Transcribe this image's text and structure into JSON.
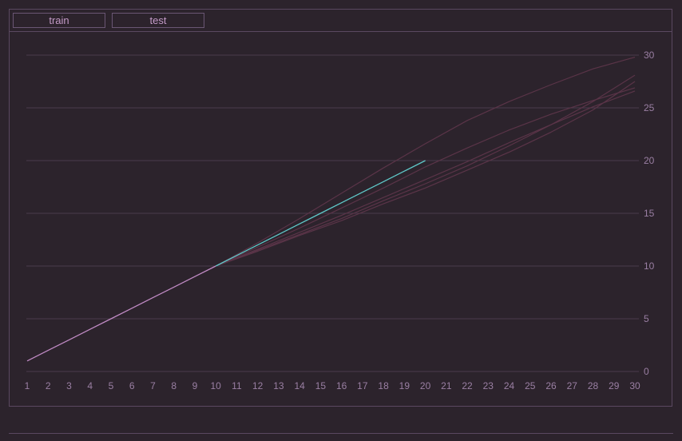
{
  "tabs": [
    {
      "label": "train"
    },
    {
      "label": "test"
    }
  ],
  "colors": {
    "background": "#2c232c",
    "grid": "#4a3b4d",
    "axis_text": "#9a7fa3",
    "main_line": "#c08ac4",
    "highlight_line": "#5fc9c9",
    "faint_lines": "#5a3448"
  },
  "chart_data": {
    "type": "line",
    "title": "",
    "xlabel": "",
    "ylabel": "",
    "xlim": [
      1,
      30
    ],
    "ylim": [
      0,
      30
    ],
    "x_ticks": [
      1,
      2,
      3,
      4,
      5,
      6,
      7,
      8,
      9,
      10,
      11,
      12,
      13,
      14,
      15,
      16,
      17,
      18,
      19,
      20,
      21,
      22,
      23,
      24,
      25,
      26,
      27,
      28,
      29,
      30
    ],
    "y_ticks": [
      0,
      5,
      10,
      15,
      20,
      25,
      30
    ],
    "y_axis_position": "right",
    "grid": "horizontal",
    "series": [
      {
        "role": "base",
        "x": [
          1,
          2,
          3,
          4,
          5,
          6,
          7,
          8,
          9,
          10
        ],
        "y": [
          1,
          2,
          3,
          4,
          5,
          6,
          7,
          8,
          9,
          10
        ]
      },
      {
        "role": "highlight",
        "x": [
          10,
          11,
          12,
          13,
          14,
          15,
          16,
          17,
          18,
          19,
          20
        ],
        "y": [
          10,
          11,
          12,
          13,
          14,
          15,
          16,
          17,
          18,
          19,
          20
        ]
      },
      {
        "role": "faint",
        "x": [
          10,
          12,
          14,
          16,
          18,
          20,
          22,
          24,
          26,
          28,
          30
        ],
        "y": [
          10,
          12.2,
          14.5,
          16.9,
          19.3,
          21.6,
          23.8,
          25.6,
          27.2,
          28.7,
          29.8
        ]
      },
      {
        "role": "faint",
        "x": [
          10,
          12,
          14,
          16,
          18,
          20,
          22,
          24,
          26,
          28,
          30
        ],
        "y": [
          10,
          11.8,
          13.6,
          15.5,
          17.4,
          19.4,
          21.2,
          22.9,
          24.4,
          25.7,
          26.9
        ]
      },
      {
        "role": "faint",
        "x": [
          10,
          12,
          14,
          16,
          18,
          20,
          22,
          24,
          26,
          28,
          30
        ],
        "y": [
          10,
          11.6,
          13.2,
          14.8,
          16.5,
          18.2,
          19.9,
          21.7,
          23.4,
          25.1,
          26.6
        ]
      },
      {
        "role": "faint",
        "x": [
          10,
          12,
          14,
          16,
          18,
          20,
          22,
          24,
          26,
          28,
          30
        ],
        "y": [
          10,
          11.5,
          13.0,
          14.5,
          16.2,
          17.8,
          19.5,
          21.4,
          23.4,
          25.6,
          28.1
        ]
      },
      {
        "role": "faint",
        "x": [
          10,
          12,
          14,
          16,
          18,
          20,
          22,
          24,
          26,
          28,
          30
        ],
        "y": [
          10,
          11.4,
          12.9,
          14.3,
          15.9,
          17.4,
          19.1,
          20.8,
          22.7,
          24.8,
          27.5
        ]
      }
    ]
  }
}
